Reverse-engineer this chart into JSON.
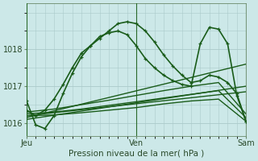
{
  "title": "Pression niveau de la mer( hPa )",
  "bg_color": "#cce8e8",
  "plot_bg": "#cce8e8",
  "grid_color": "#aacaca",
  "line_dark": "#1a5c1a",
  "ylim": [
    1015.65,
    1019.25
  ],
  "xlim": [
    0,
    48
  ],
  "yticks": [
    1016,
    1017,
    1018
  ],
  "xtick_positions": [
    0,
    24,
    48
  ],
  "xtick_labels": [
    "Jeu",
    "Ven",
    "Sam"
  ],
  "series": [
    {
      "x": [
        0,
        2,
        4,
        6,
        8,
        10,
        12,
        14,
        16,
        18,
        20,
        22,
        24,
        26,
        28,
        30,
        32,
        34,
        36,
        38,
        40,
        42,
        44,
        46,
        48
      ],
      "y": [
        1016.35,
        1016.2,
        1016.35,
        1016.65,
        1017.05,
        1017.5,
        1017.9,
        1018.1,
        1018.3,
        1018.5,
        1018.7,
        1018.75,
        1018.7,
        1018.5,
        1018.2,
        1017.85,
        1017.55,
        1017.3,
        1017.1,
        1017.15,
        1017.3,
        1017.25,
        1017.1,
        1016.8,
        1016.05
      ],
      "marker": true,
      "lw": 1.2
    },
    {
      "x": [
        0,
        2,
        4,
        6,
        8,
        10,
        12,
        14,
        16,
        18,
        20,
        22,
        24,
        26,
        28,
        30,
        32,
        34,
        36,
        38,
        40,
        42,
        44,
        46,
        48
      ],
      "y": [
        1016.6,
        1015.95,
        1015.85,
        1016.2,
        1016.8,
        1017.35,
        1017.8,
        1018.1,
        1018.35,
        1018.45,
        1018.5,
        1018.4,
        1018.1,
        1017.75,
        1017.5,
        1017.3,
        1017.15,
        1017.05,
        1017.0,
        1018.15,
        1018.6,
        1018.55,
        1018.15,
        1016.75,
        1016.05
      ],
      "marker": true,
      "lw": 1.2
    },
    {
      "x": [
        0,
        6,
        12,
        18,
        24,
        30,
        36,
        42,
        48
      ],
      "y": [
        1016.2,
        1016.22,
        1016.28,
        1016.35,
        1016.42,
        1016.52,
        1016.6,
        1016.65,
        1016.05
      ],
      "marker": false,
      "lw": 1.0
    },
    {
      "x": [
        0,
        6,
        12,
        18,
        24,
        30,
        36,
        42,
        48
      ],
      "y": [
        1016.25,
        1016.3,
        1016.38,
        1016.48,
        1016.58,
        1016.68,
        1016.78,
        1016.88,
        1016.15
      ],
      "marker": false,
      "lw": 1.0
    },
    {
      "x": [
        0,
        6,
        12,
        18,
        24,
        30,
        36,
        42,
        48
      ],
      "y": [
        1016.3,
        1016.38,
        1016.5,
        1016.62,
        1016.75,
        1016.88,
        1017.0,
        1017.1,
        1016.25
      ],
      "marker": false,
      "lw": 1.0
    },
    {
      "x": [
        0,
        48
      ],
      "y": [
        1016.2,
        1016.85
      ],
      "marker": false,
      "lw": 1.0
    },
    {
      "x": [
        0,
        48
      ],
      "y": [
        1016.15,
        1017.6
      ],
      "marker": false,
      "lw": 1.0
    },
    {
      "x": [
        0,
        48
      ],
      "y": [
        1016.1,
        1017.0
      ],
      "marker": false,
      "lw": 1.0
    }
  ],
  "vlines": [
    24
  ],
  "vline_color": "#2a6a2a"
}
